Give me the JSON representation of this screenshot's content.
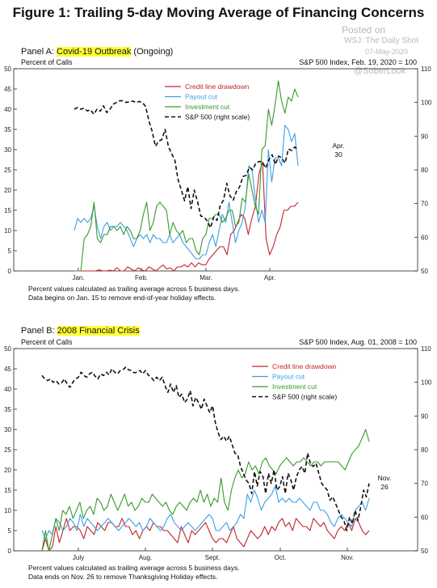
{
  "figure": {
    "title": "Figure 1: Trailing 5-day Moving Average of Financing Concerns",
    "watermark": {
      "posted": "Posted on",
      "source": "WSJ: The Daily Shot",
      "date": "07-May-2020",
      "handle": "@SoberLook"
    }
  },
  "panels": [
    {
      "label_prefix": "Panel A: ",
      "label_highlight": "Covid-19 Outbreak",
      "label_suffix": " (Ongoing)",
      "left_axis_label": "Percent of Calls",
      "right_axis_label": "S&P 500 Index, Feb. 19, 2020 = 100",
      "notes": [
        "Percent values calculated as trailing average across 5 business days.",
        "Data begins on Jan. 15 to remove end-of-year holiday effects."
      ],
      "annotation": [
        "Apr.",
        "30"
      ]
    },
    {
      "label_prefix": "Panel B: ",
      "label_highlight": "2008 Financial Crisis",
      "label_suffix": "",
      "left_axis_label": "Percent of Calls",
      "right_axis_label": "S&P 500 Index, Aug. 01, 2008 = 100",
      "notes": [
        "Percent values calculated as trailing average across 5 business days.",
        "Data ends on Nov. 26 to remove Thanksgiving Holiday effects."
      ],
      "annotation": [
        "Nov.",
        "26"
      ]
    }
  ],
  "colors": {
    "credit": "#c0272d",
    "payout": "#3e9ee8",
    "invest": "#3a9a2c",
    "sp500": "#111111"
  },
  "chart_data": [
    {
      "type": "line",
      "title": "Panel A: Covid-19 Outbreak (Ongoing)",
      "ylabel": "Percent of Calls",
      "y2label": "S&P 500 Index, Feb. 19, 2020 = 100",
      "x_ticks": [
        "Jan.",
        "Feb.",
        "Mar.",
        "Apr."
      ],
      "ylim": [
        0,
        50
      ],
      "y_ticks": [
        0,
        5,
        10,
        15,
        20,
        25,
        30,
        35,
        40,
        45,
        50
      ],
      "y2lim": [
        50,
        110
      ],
      "y2_ticks": [
        50,
        60,
        70,
        80,
        90,
        100,
        110
      ],
      "legend": "top-center",
      "series": [
        {
          "name": "Credit line drawdown",
          "key": "credit",
          "axis": "left",
          "values": [
            0,
            0,
            0,
            0,
            0,
            0,
            0,
            0.3,
            0,
            0,
            0.2,
            0,
            0.8,
            0,
            0,
            1,
            0.5,
            0,
            0.8,
            0.2,
            0,
            1,
            0.5,
            0,
            0.8,
            1.5,
            0.5,
            0.8,
            0,
            1,
            1,
            1.5,
            1,
            2,
            1,
            2,
            1.5,
            1.5,
            3,
            4,
            5,
            6,
            6,
            4,
            9,
            10,
            12,
            14,
            13,
            9,
            13,
            16,
            24,
            27,
            8,
            4,
            6,
            9,
            11,
            15,
            15,
            16,
            16,
            17
          ]
        },
        {
          "name": "Payout cut",
          "key": "payout",
          "axis": "left",
          "values": [
            10,
            13,
            12,
            13,
            12,
            13,
            16,
            11,
            8,
            11,
            12,
            10,
            11,
            11,
            12,
            11,
            10,
            8,
            6,
            8,
            9,
            8,
            9,
            7,
            9,
            8,
            8,
            7,
            7,
            9,
            7,
            8,
            9,
            7,
            6,
            5,
            4,
            3,
            3,
            4,
            4,
            7,
            9,
            6,
            10,
            14,
            12,
            17,
            12,
            7,
            10,
            12,
            16,
            26,
            25,
            18,
            12,
            15,
            12,
            30,
            22,
            28,
            28,
            26,
            36,
            35,
            32,
            34,
            26
          ]
        },
        {
          "name": "Investment cut",
          "key": "invest",
          "axis": "left",
          "values": [
            0,
            0,
            0,
            8,
            9,
            11,
            17,
            8,
            7,
            9,
            9,
            11,
            11,
            10,
            11,
            9,
            11,
            10,
            8,
            8,
            10,
            14,
            17,
            10,
            12,
            16,
            17,
            16,
            15,
            9,
            12,
            10,
            9,
            10,
            7,
            8,
            8,
            5,
            4,
            8,
            9,
            13,
            13,
            14,
            14,
            12,
            13,
            15,
            15,
            11,
            12,
            18,
            17,
            24,
            20,
            16,
            14,
            30,
            31,
            40,
            36,
            41,
            47,
            42,
            39,
            43,
            42,
            45,
            43
          ]
        },
        {
          "name": "S&P 500 (right scale)",
          "key": "sp500",
          "axis": "right",
          "values": [
            98,
            98.5,
            98,
            98.3,
            97.5,
            97.8,
            96.5,
            98,
            97.4,
            99,
            97,
            98,
            99.5,
            100,
            100.5,
            100.5,
            100,
            100.2,
            100.4,
            100,
            100.3,
            100,
            98.8,
            94.6,
            91.5,
            87,
            88.5,
            89,
            92,
            87,
            84.8,
            83,
            77,
            74,
            70.8,
            75,
            68.5,
            74,
            70.5,
            66.3,
            66,
            64.8,
            62.8,
            66,
            65,
            69.5,
            71,
            76,
            72.3,
            71,
            73.6,
            75,
            78,
            78.4,
            80.8,
            80,
            82,
            82.5,
            82.4,
            80.5,
            83,
            84.5,
            81.6,
            84.1,
            83.5,
            82,
            86.2,
            85.7,
            86.8,
            85.8
          ]
        }
      ]
    },
    {
      "type": "line",
      "title": "Panel B: 2008 Financial Crisis",
      "ylabel": "Percent of Calls",
      "y2label": "S&P 500 Index, Aug. 01, 2008 = 100",
      "x_ticks": [
        "July",
        "Aug.",
        "Sept.",
        "Oct.",
        "Nov."
      ],
      "ylim": [
        0,
        50
      ],
      "y_ticks": [
        0,
        5,
        10,
        15,
        20,
        25,
        30,
        35,
        40,
        45,
        50
      ],
      "y2lim": [
        50,
        110
      ],
      "y2_ticks": [
        50,
        60,
        70,
        80,
        90,
        100,
        110
      ],
      "legend": "center-right",
      "series": [
        {
          "name": "Credit line drawdown",
          "key": "credit",
          "axis": "left",
          "values": [
            0,
            3,
            0,
            1,
            6,
            2,
            5,
            8,
            5,
            6,
            6,
            5,
            3,
            6,
            5,
            4,
            7,
            6,
            5,
            7,
            7,
            6,
            6,
            8,
            6,
            6,
            4,
            5,
            3,
            5,
            6,
            5,
            7,
            6,
            6,
            5,
            5,
            4,
            3,
            2,
            6,
            4,
            2,
            5,
            4,
            5,
            6,
            7,
            5,
            3,
            2,
            3,
            3,
            2,
            4,
            6,
            3,
            2,
            1,
            3,
            5,
            4,
            3,
            4,
            6,
            4,
            6,
            5,
            7,
            8,
            6,
            7,
            5,
            8,
            7,
            6,
            6,
            5,
            8,
            7,
            6,
            7,
            5,
            4,
            3,
            5,
            6,
            5,
            7,
            5,
            8,
            7,
            5,
            4,
            5
          ]
        },
        {
          "name": "Payout cut",
          "key": "payout",
          "axis": "left",
          "values": [
            5,
            3,
            5,
            4,
            8,
            7,
            5,
            6,
            8,
            7,
            5,
            9,
            6,
            8,
            7,
            6,
            5,
            6,
            7,
            8,
            7,
            6,
            5,
            6,
            7,
            8,
            7,
            6,
            7,
            5,
            6,
            8,
            7,
            6,
            5,
            6,
            8,
            9,
            7,
            6,
            5,
            6,
            7,
            6,
            5,
            6,
            7,
            8,
            9,
            8,
            5,
            5,
            6,
            7,
            5,
            6,
            7,
            9,
            8,
            14,
            12,
            15,
            13,
            10,
            12,
            13,
            14,
            16,
            12,
            13,
            12,
            13,
            12,
            12,
            13,
            12,
            11,
            10,
            12,
            12,
            10,
            10,
            9,
            7,
            6,
            8,
            9,
            8,
            7,
            6,
            10,
            11,
            12,
            10,
            13
          ]
        },
        {
          "name": "Investment cut",
          "key": "invest",
          "axis": "left",
          "values": [
            0,
            5,
            0,
            4,
            8,
            5,
            10,
            9,
            11,
            8,
            10,
            12,
            8,
            10,
            11,
            9,
            13,
            12,
            10,
            11,
            14,
            12,
            10,
            12,
            14,
            11,
            12,
            10,
            11,
            13,
            12,
            12,
            14,
            13,
            12,
            11,
            12,
            10,
            9,
            11,
            12,
            11,
            10,
            12,
            13,
            12,
            15,
            12,
            14,
            11,
            13,
            12,
            18,
            12,
            10,
            15,
            18,
            20,
            18,
            19,
            22,
            20,
            21,
            19,
            22,
            23,
            21,
            20,
            19,
            21,
            22,
            23,
            22,
            21,
            22,
            22,
            23,
            22,
            21,
            22,
            22,
            21,
            22,
            22,
            22,
            22,
            22,
            21,
            20,
            22,
            24,
            25,
            26,
            28,
            30,
            27
          ]
        },
        {
          "name": "S&P 500 (right scale)",
          "key": "sp500",
          "axis": "right",
          "values": [
            102,
            101,
            100.5,
            101,
            100,
            100.5,
            99.5,
            99.8,
            101,
            99.5,
            98.5,
            100,
            101,
            101.5,
            103,
            102,
            101.5,
            102.5,
            103,
            101.8,
            101,
            102.5,
            102,
            103,
            102.2,
            104,
            103,
            102.5,
            103.5,
            103.8,
            104.5,
            103.7,
            103.5,
            102.8,
            103,
            103.5,
            102.5,
            103.5,
            102.2,
            101.5,
            100.5,
            101.5,
            100.5,
            101.5,
            99,
            97,
            99.5,
            97,
            99,
            95.5,
            96.5,
            94,
            95,
            97.5,
            93,
            95.5,
            94,
            92,
            95,
            93,
            91,
            93,
            88,
            85,
            83,
            84,
            82.5,
            84,
            81.5,
            79,
            78.5,
            75,
            73,
            71,
            70,
            67,
            73.5,
            69.2,
            73.5,
            72,
            67,
            73,
            70,
            74,
            68,
            69,
            72,
            67,
            73,
            71,
            68,
            72,
            74,
            75,
            73,
            79,
            76,
            75,
            76,
            73,
            70,
            69,
            68,
            65,
            66,
            64,
            62,
            60,
            59,
            56,
            60,
            58,
            62,
            59,
            63,
            68,
            66,
            70
          ]
        }
      ]
    }
  ]
}
